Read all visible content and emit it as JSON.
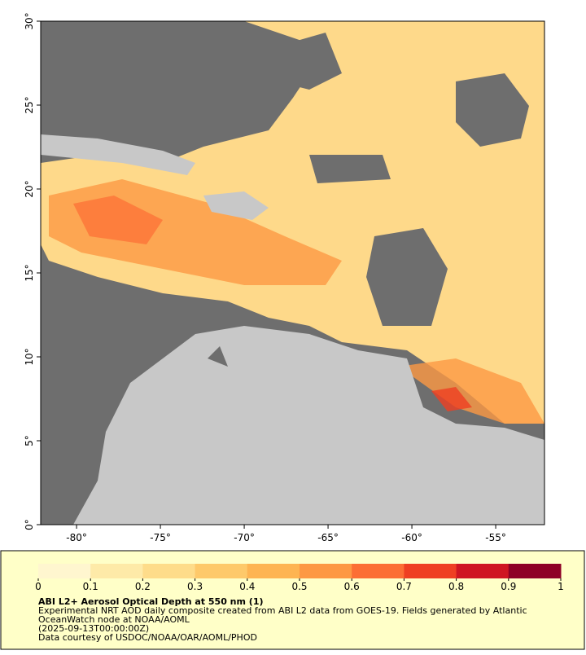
{
  "map": {
    "xlim": [
      -82.14,
      -52.09
    ],
    "ylim": [
      0,
      30
    ],
    "xticks": [
      {
        "value": -80,
        "label": "-80°"
      },
      {
        "value": -75,
        "label": "-75°"
      },
      {
        "value": -70,
        "label": "-70°"
      },
      {
        "value": -65,
        "label": "-65°"
      },
      {
        "value": -60,
        "label": "-60°"
      },
      {
        "value": -55,
        "label": "-55°"
      }
    ],
    "yticks": [
      {
        "value": 0,
        "label": "0°"
      },
      {
        "value": 5,
        "label": "5°"
      },
      {
        "value": 10,
        "label": "10°"
      },
      {
        "value": 15,
        "label": "15°"
      },
      {
        "value": 20,
        "label": "20°"
      },
      {
        "value": 25,
        "label": "25°"
      },
      {
        "value": 30,
        "label": "30°"
      }
    ]
  },
  "colorbar": {
    "lim": [
      0,
      1
    ],
    "ticks": [
      0,
      0.1,
      0.2,
      0.3,
      0.4,
      0.5,
      0.6,
      0.7,
      0.8,
      0.9,
      1
    ],
    "colors": [
      "#fff6cf",
      "#feeaa8",
      "#fedc8a",
      "#fec96a",
      "#feb452",
      "#fd9843",
      "#fc6e34",
      "#ef3f22",
      "#cf1522",
      "#8e0026"
    ],
    "title": "ABI L2+ Aerosol Optical Depth at 550 nm (1)",
    "caption": [
      "Experimental NRT AOD daily composite created from ABI L2 data from GOES-19. Fields generated by Atlantic",
      "OceanWatch node at NOAA/AOML",
      "(2025-09-13T00:00:00Z)",
      "Data courtesy of USDOC/NOAA/OAR/AOML/PHOD"
    ]
  }
}
